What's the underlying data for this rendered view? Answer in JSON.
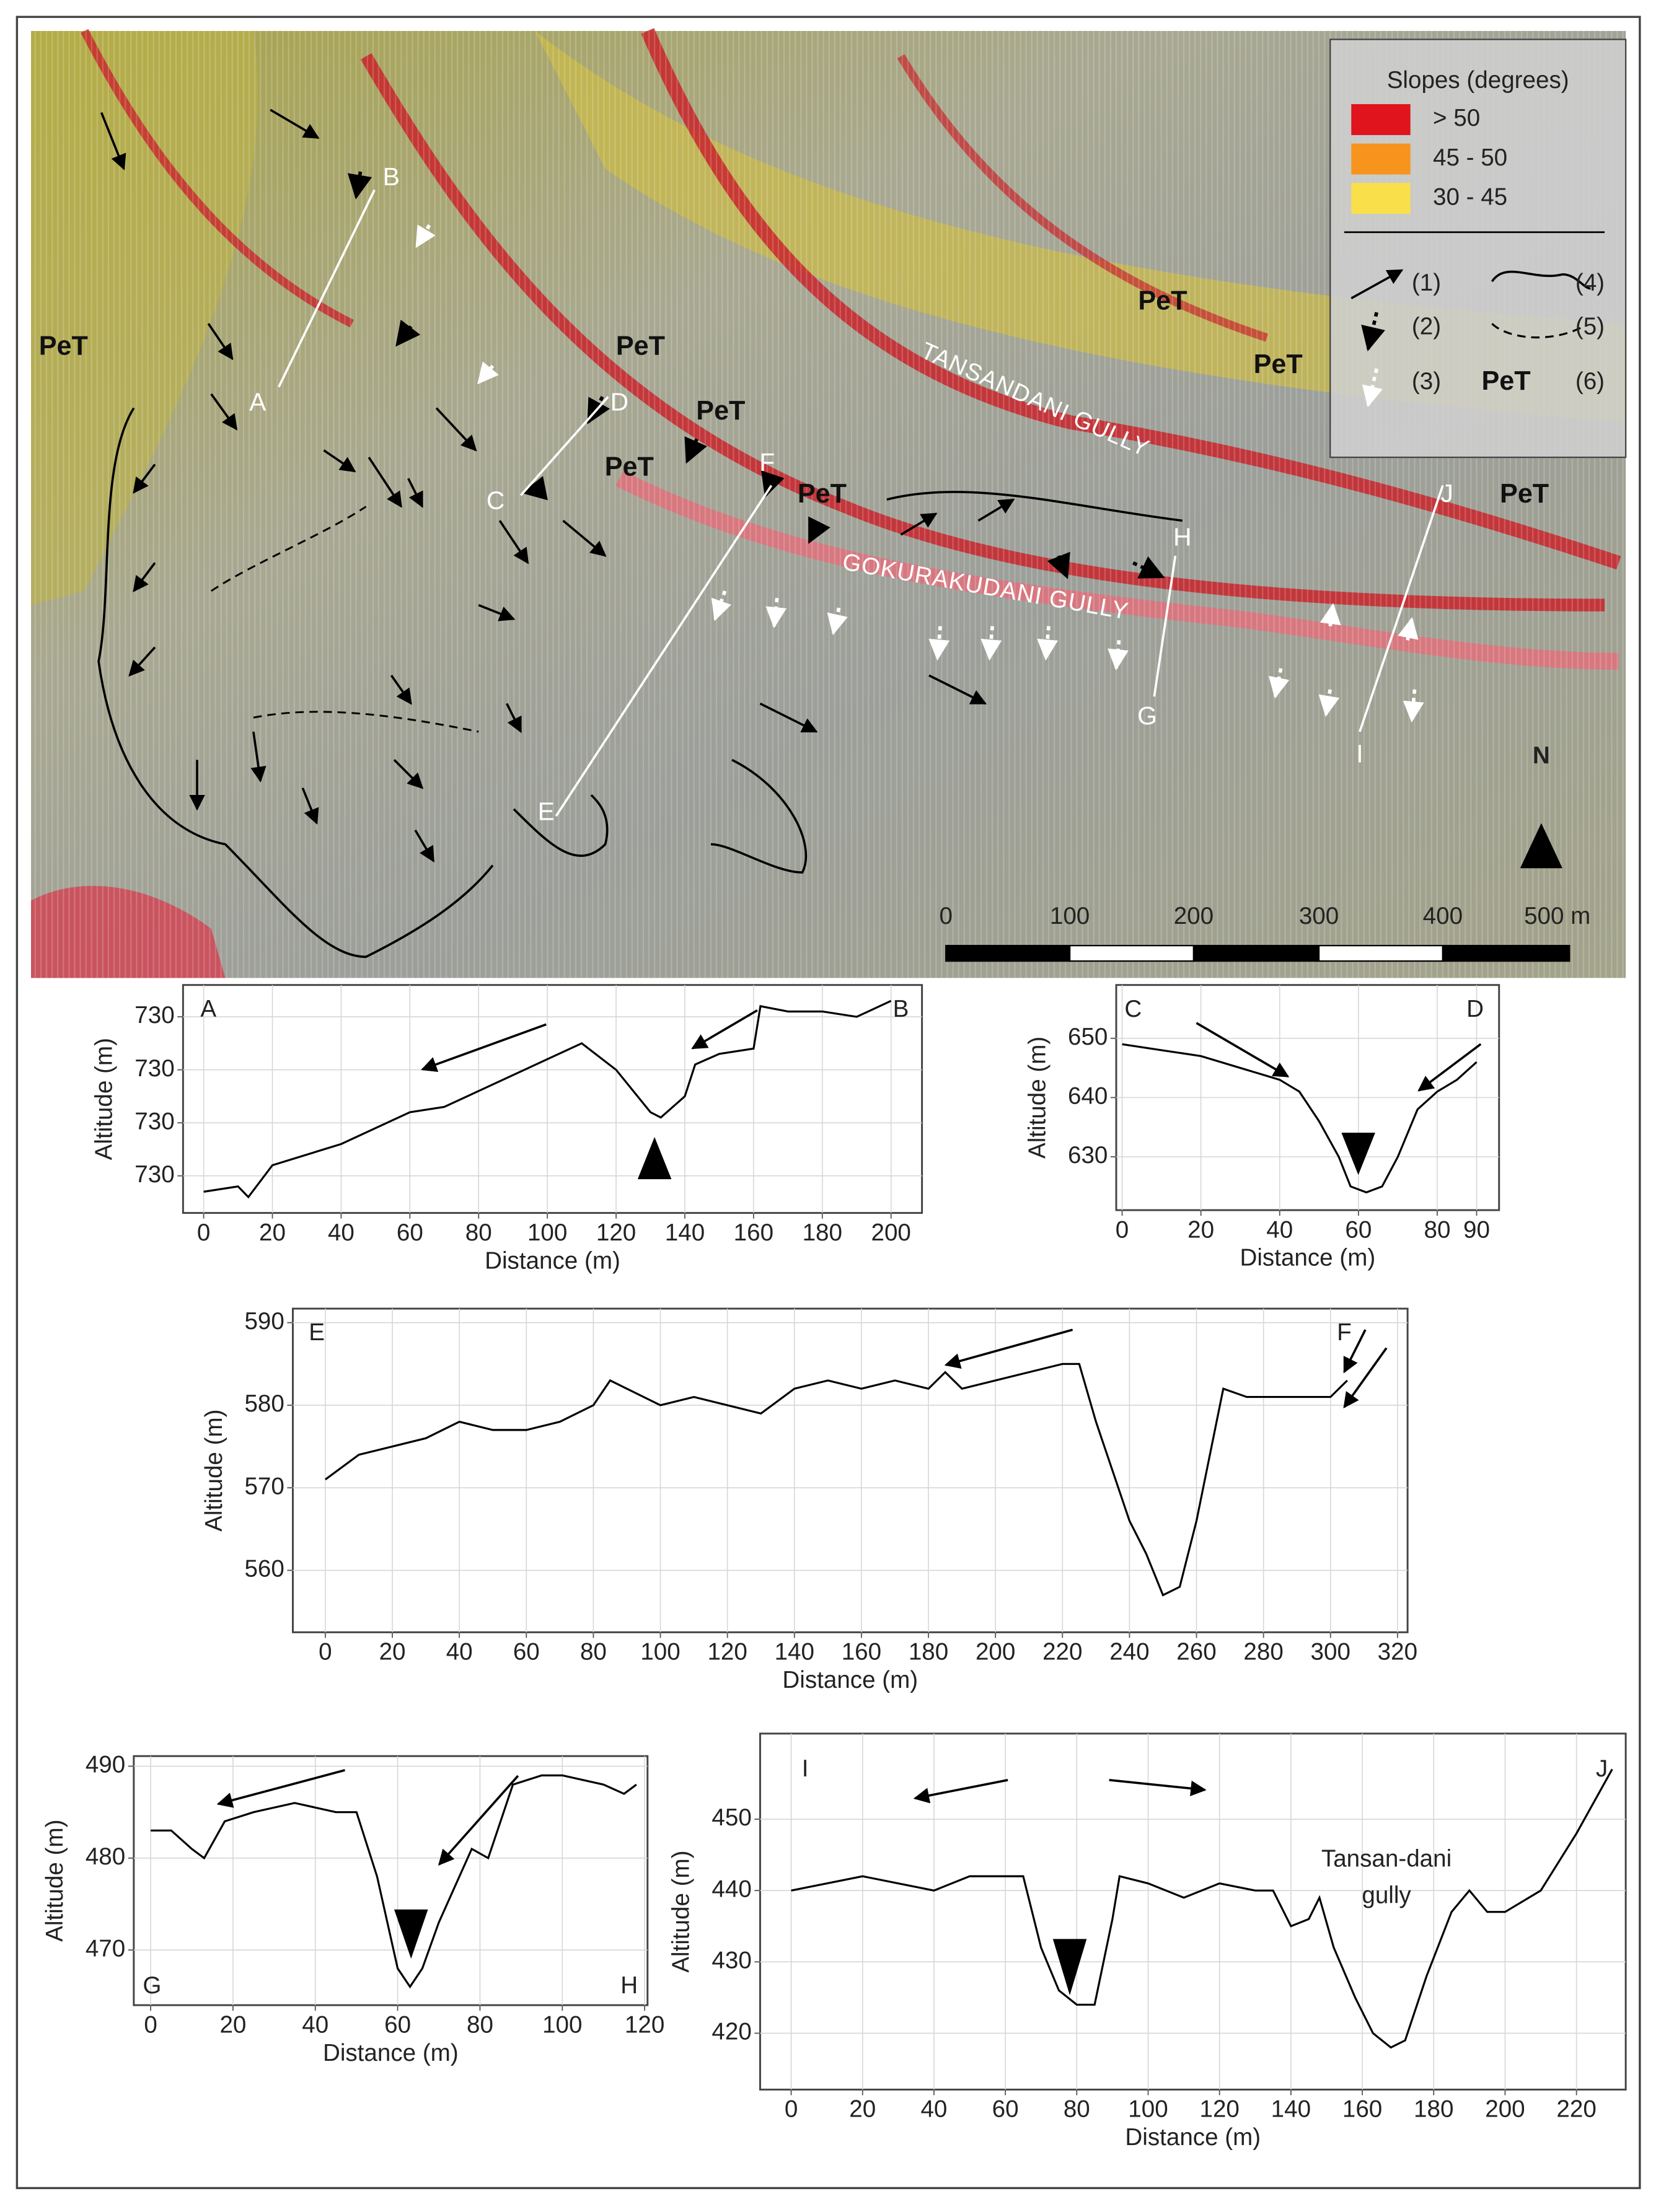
{
  "map": {
    "unit_labels": [
      "PeT",
      "PeT",
      "PeT",
      "PeT",
      "PeT",
      "PeT",
      "PeT",
      "PeT"
    ],
    "section_labels": [
      "A",
      "B",
      "C",
      "D",
      "E",
      "F",
      "G",
      "H",
      "I",
      "J"
    ],
    "gully_labels": [
      "TANSANDANI GULLY",
      "GOKURAKUDANI GULLY"
    ],
    "north": "N",
    "scale_labels": [
      "0",
      "100",
      "200",
      "300",
      "400",
      "500 m"
    ],
    "legend": {
      "title": "Slopes (degrees)",
      "classes": [
        {
          "label": "> 50",
          "color": "#e0141c"
        },
        {
          "label": "45 - 50",
          "color": "#f7941d"
        },
        {
          "label": "30 - 45",
          "color": "#f9e04b"
        }
      ],
      "symbols": [
        "(1)",
        "(2)",
        "(3)",
        "(4)",
        "(5)",
        "(6)"
      ],
      "unit": "PeT"
    }
  },
  "chart_data": [
    {
      "type": "line",
      "start_label": "A",
      "end_label": "B",
      "xlabel": "Distance (m)",
      "ylabel": "Altitude (m)",
      "color": "#000000",
      "grid": true,
      "x": [
        0,
        10,
        13,
        20,
        40,
        60,
        70,
        80,
        100,
        110,
        120,
        130,
        133,
        140,
        143,
        150,
        160,
        162,
        170,
        180,
        190,
        200
      ],
      "values": [
        729.97,
        729.98,
        729.96,
        730.02,
        730.06,
        730.12,
        730.13,
        730.16,
        730.22,
        730.25,
        730.2,
        730.12,
        730.11,
        730.15,
        730.21,
        730.23,
        730.24,
        730.32,
        730.31,
        730.31,
        730.3,
        730.33
      ],
      "xlim": [
        -6,
        209
      ],
      "xticks": [
        0,
        20,
        40,
        60,
        80,
        100,
        120,
        140,
        160,
        180,
        200
      ],
      "ylim": [
        729.93,
        730.36
      ],
      "yticks": [
        {
          "value": 730.3,
          "label": "730"
        },
        {
          "value": 730.2,
          "label": "730"
        },
        {
          "value": 730.1,
          "label": "730"
        },
        {
          "value": 730.0,
          "label": "730"
        }
      ]
    },
    {
      "type": "line",
      "start_label": "C",
      "end_label": "D",
      "xlabel": "Distance (m)",
      "ylabel": "Altitude (m)",
      "color": "#000000",
      "grid": true,
      "x": [
        0,
        10,
        20,
        30,
        40,
        45,
        50,
        55,
        58,
        62,
        66,
        70,
        75,
        80,
        85,
        90
      ],
      "values": [
        649,
        648,
        647,
        645,
        643,
        641,
        636,
        630,
        625,
        624,
        625,
        630,
        638,
        641,
        643,
        646
      ],
      "xlim": [
        -1.5,
        95.7
      ],
      "xticks": [
        0,
        20,
        40,
        60,
        80,
        90
      ],
      "ylim": [
        621,
        659
      ],
      "yticks": [
        630,
        640,
        650
      ]
    },
    {
      "type": "line",
      "start_label": "E",
      "end_label": "F",
      "xlabel": "Distance (m)",
      "ylabel": "Altitude (m)",
      "color": "#000000",
      "grid": true,
      "x": [
        0,
        10,
        20,
        30,
        40,
        50,
        60,
        70,
        80,
        85,
        90,
        100,
        110,
        120,
        130,
        140,
        150,
        160,
        170,
        180,
        185,
        190,
        200,
        210,
        220,
        225,
        230,
        235,
        240,
        245,
        250,
        255,
        260,
        265,
        268,
        275,
        290,
        300,
        305
      ],
      "values": [
        571,
        574,
        575,
        576,
        578,
        577,
        577,
        578,
        580,
        583,
        582,
        580,
        581,
        580,
        579,
        582,
        583,
        582,
        583,
        582,
        584,
        582,
        583,
        584,
        585,
        585,
        578,
        572,
        566,
        562,
        557,
        558,
        566,
        576,
        582,
        581,
        581,
        581,
        583
      ],
      "xlim": [
        -9.7,
        323
      ],
      "xticks": [
        0,
        20,
        40,
        60,
        80,
        100,
        120,
        140,
        160,
        180,
        200,
        220,
        240,
        260,
        280,
        300,
        320
      ],
      "ylim": [
        552.5,
        591.7
      ],
      "yticks": [
        560,
        570,
        580,
        590
      ]
    },
    {
      "type": "line",
      "start_label": "G",
      "end_label": "H",
      "xlabel": "Distance (m)",
      "ylabel": "Altitude (m)",
      "color": "#000000",
      "grid": true,
      "x": [
        0,
        5,
        10,
        13,
        18,
        25,
        35,
        45,
        50,
        55,
        60,
        63,
        66,
        70,
        75,
        78,
        82,
        88,
        95,
        100,
        110,
        115,
        118
      ],
      "values": [
        483,
        483,
        481,
        480,
        484,
        485,
        486,
        485,
        485,
        478,
        468,
        466,
        468,
        473,
        478,
        481,
        480,
        488,
        489,
        489,
        488,
        487,
        488
      ],
      "xlim": [
        -4.1,
        120.7
      ],
      "xticks": [
        0,
        20,
        40,
        60,
        80,
        100,
        120
      ],
      "ylim": [
        464,
        491.1
      ],
      "yticks": [
        470,
        480,
        490
      ]
    },
    {
      "type": "line",
      "start_label": "I",
      "end_label": "J",
      "xlabel": "Distance (m)",
      "ylabel": "Altitude (m)",
      "color": "#000000",
      "grid": true,
      "annotation": [
        "Tansan-dani",
        "gully"
      ],
      "x": [
        0,
        10,
        20,
        30,
        40,
        50,
        60,
        65,
        70,
        75,
        80,
        85,
        90,
        92,
        100,
        110,
        120,
        130,
        135,
        140,
        145,
        148,
        152,
        158,
        163,
        168,
        172,
        178,
        185,
        190,
        195,
        200,
        210,
        220,
        230
      ],
      "values": [
        440,
        441,
        442,
        441,
        440,
        442,
        442,
        442,
        432,
        426,
        424,
        424,
        436,
        442,
        441,
        439,
        441,
        440,
        440,
        435,
        436,
        439,
        432,
        425,
        420,
        418,
        419,
        428,
        437,
        440,
        437,
        437,
        440,
        448,
        457
      ],
      "xlim": [
        -8.7,
        233.8
      ],
      "xticks": [
        0,
        20,
        40,
        60,
        80,
        100,
        120,
        140,
        160,
        180,
        200,
        220
      ],
      "ylim": [
        412.1,
        462
      ],
      "yticks": [
        420,
        430,
        440,
        450
      ]
    }
  ]
}
